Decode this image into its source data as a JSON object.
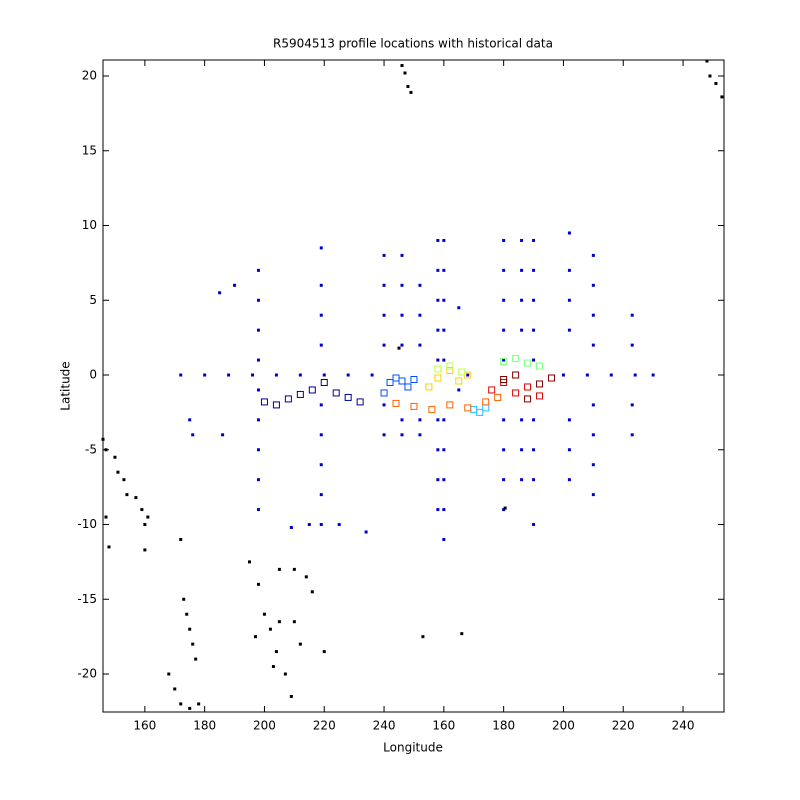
{
  "chart_data": {
    "type": "scatter",
    "title": "R5904513 profile locations with historical data",
    "x_label": "Longitude",
    "y_label": "Latitude",
    "xlim": [
      146,
      353.7
    ],
    "ylim": [
      -22.54,
      21.07
    ],
    "xticks": [
      160,
      180,
      200,
      220,
      240,
      {
        "value": 260,
        "label": "160"
      },
      {
        "value": 280,
        "label": "180"
      },
      {
        "value": 300,
        "label": "200"
      },
      {
        "value": 320,
        "label": "220"
      },
      {
        "value": 340,
        "label": "240"
      }
    ],
    "yticks": [
      -20,
      -15,
      -10,
      -5,
      0,
      5,
      10,
      15,
      20
    ],
    "series": [
      {
        "color": "#0000cc",
        "marker": "dot",
        "x": [
          198,
          198,
          198,
          198,
          198,
          198,
          198,
          198,
          198,
          219,
          219,
          219,
          219,
          219,
          219,
          219,
          219,
          219,
          240,
          240,
          240,
          240,
          240,
          240,
          246,
          246,
          246,
          246,
          246,
          246,
          252,
          252,
          252,
          252,
          252,
          258,
          258,
          258,
          258,
          258,
          258,
          258,
          258,
          258,
          260,
          260,
          260,
          260,
          260,
          260,
          260,
          260,
          260,
          260,
          280,
          280,
          280,
          280,
          280,
          280,
          280,
          280,
          280,
          286,
          286,
          286,
          286,
          286,
          286,
          286,
          290,
          290,
          290,
          290,
          290,
          290,
          290,
          290,
          290,
          302,
          302,
          302,
          302,
          302,
          302,
          302,
          310,
          310,
          310,
          310,
          310,
          310,
          310,
          310,
          323,
          323,
          323,
          323,
          172,
          180,
          188,
          196,
          204,
          212,
          220,
          228,
          236,
          268,
          300,
          308,
          316,
          324,
          330,
          185,
          190,
          175,
          176,
          186,
          209,
          215,
          225,
          234,
          265,
          265
        ],
        "y": [
          7,
          5,
          3,
          1,
          -1,
          -3,
          -5,
          -7,
          -9,
          8.5,
          6,
          4,
          2,
          -2,
          -4,
          -6,
          -8,
          -10,
          8,
          6,
          4,
          2,
          -2,
          -4,
          8,
          6,
          4,
          2,
          -3,
          -4,
          6,
          4,
          2,
          -3,
          -4,
          9,
          7,
          5,
          3,
          1,
          -3,
          -5,
          -7,
          -9,
          9,
          7,
          5,
          3,
          1,
          -3,
          -5,
          -7,
          -9,
          -11,
          9,
          7,
          5,
          3,
          1,
          -3,
          -5,
          -7,
          -9,
          9,
          7,
          5,
          3,
          -3,
          -5,
          -7,
          9,
          7,
          5,
          3,
          1,
          -3,
          -5,
          -7,
          -10,
          9.5,
          7,
          5,
          3,
          -3,
          -5,
          -7,
          8,
          6,
          4,
          2,
          -2,
          -4,
          -6,
          -8,
          4,
          2,
          -2,
          -4,
          0,
          0,
          0,
          0,
          0,
          0,
          0,
          0,
          0,
          0,
          0,
          0,
          0,
          0,
          0,
          5.5,
          6,
          -3,
          -4,
          -4,
          -10.2,
          -10,
          -10,
          -10.5,
          4.5,
          -1
        ]
      },
      {
        "color": "#000000",
        "marker": "dot",
        "x": [
          146,
          147,
          150,
          151,
          153,
          154,
          157,
          159,
          160,
          161,
          147,
          148,
          160,
          172,
          173,
          174,
          175,
          176,
          177,
          168,
          170,
          172,
          175,
          178,
          195,
          198,
          200,
          197,
          202,
          205,
          204,
          203,
          207,
          209,
          205,
          210,
          214,
          216,
          210,
          212,
          220,
          253,
          266,
          246,
          247,
          248,
          249,
          348,
          349,
          351,
          353,
          245,
          280.5
        ],
        "y": [
          -4.3,
          -5,
          -5.5,
          -6.5,
          -7,
          -8,
          -8.2,
          -9,
          -10,
          -9.5,
          -9.5,
          -11.5,
          -11.7,
          -11,
          -15,
          -16,
          -17,
          -18,
          -19,
          -20,
          -21,
          -22,
          -22.3,
          -22,
          -12.5,
          -14,
          -16,
          -17.5,
          -17,
          -16.5,
          -18.5,
          -19.5,
          -20,
          -21.5,
          -13,
          -13,
          -13.5,
          -14.5,
          -16.5,
          -18,
          -18.5,
          -17.5,
          -17.3,
          20.7,
          20.2,
          19.3,
          18.9,
          21,
          20,
          19.5,
          18.6,
          1.8,
          -8.9
        ]
      },
      {
        "color": "#000090",
        "marker": "square",
        "x": [
          200,
          204,
          208,
          212,
          216,
          220,
          224,
          228,
          232
        ],
        "y": [
          -1.8,
          -2,
          -1.6,
          -1.3,
          -1,
          -0.5,
          -1.2,
          -1.5,
          -1.8
        ]
      },
      {
        "color": "#0050ff",
        "marker": "square",
        "x": [
          240,
          242,
          244,
          246,
          248,
          250
        ],
        "y": [
          -1.2,
          -0.5,
          -0.2,
          -0.4,
          -0.8,
          -0.3
        ]
      },
      {
        "color": "#20c0ff",
        "marker": "square",
        "x": [
          270,
          272,
          274
        ],
        "y": [
          -2.3,
          -2.5,
          -2.2
        ]
      },
      {
        "color": "#ff6000",
        "marker": "square",
        "x": [
          244,
          250,
          256,
          262,
          268,
          274,
          278
        ],
        "y": [
          -1.9,
          -2.1,
          -2.3,
          -2,
          -2.2,
          -1.8,
          -1.5
        ]
      },
      {
        "color": "#ffd000",
        "marker": "square",
        "x": [
          255,
          258,
          262,
          265,
          268
        ],
        "y": [
          -0.8,
          -0.2,
          0.3,
          -0.4,
          0
        ]
      },
      {
        "color": "#c0ff40",
        "marker": "square",
        "x": [
          258,
          262,
          266
        ],
        "y": [
          0.4,
          0.6,
          0.2
        ]
      },
      {
        "color": "#80ff80",
        "marker": "square",
        "x": [
          280,
          284,
          288,
          292
        ],
        "y": [
          0.9,
          1.1,
          0.8,
          0.6
        ]
      },
      {
        "color": "#e00000",
        "marker": "square",
        "x": [
          276,
          280,
          284,
          288,
          292
        ],
        "y": [
          -1,
          -0.5,
          -1.2,
          -0.8,
          -1.4
        ]
      },
      {
        "color": "#800000",
        "marker": "square",
        "x": [
          280,
          284,
          288,
          292,
          296
        ],
        "y": [
          -0.3,
          0,
          -1.6,
          -0.6,
          -0.2
        ]
      }
    ]
  }
}
